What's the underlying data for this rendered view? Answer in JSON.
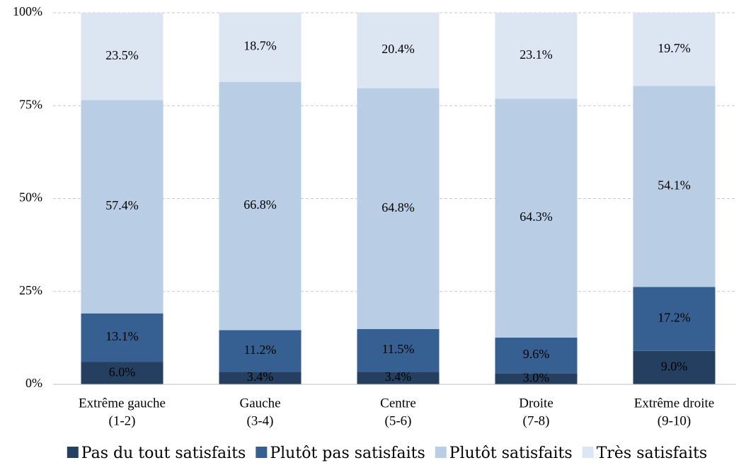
{
  "chart_data": {
    "type": "stacked-bar",
    "categories": [
      [
        "Extrême gauche",
        "(1-2)"
      ],
      [
        "Gauche",
        "(3-4)"
      ],
      [
        "Centre",
        "(5-6)"
      ],
      [
        "Droite",
        "(7-8)"
      ],
      [
        "Extrême droite",
        "(9-10)"
      ]
    ],
    "series": [
      {
        "name": "Pas du tout satisfaits",
        "color": "#243f60",
        "values": [
          6.0,
          3.4,
          3.4,
          3.0,
          9.0
        ],
        "value_labels": [
          "6.0%",
          "3.4%",
          "3.4%",
          "3.0%",
          "9.0%"
        ]
      },
      {
        "name": "Plutôt pas satisfaits",
        "color": "#376092",
        "values": [
          13.1,
          11.2,
          11.5,
          9.6,
          17.2
        ],
        "value_labels": [
          "13.1%",
          "11.2%",
          "11.5%",
          "9.6%",
          "17.2%"
        ]
      },
      {
        "name": "Plutôt satisfaits",
        "color": "#b9cde5",
        "values": [
          57.4,
          66.8,
          64.8,
          64.3,
          54.1
        ],
        "value_labels": [
          "57.4%",
          "66.8%",
          "64.8%",
          "64.3%",
          "54.1%"
        ]
      },
      {
        "name": "Très satisfaits",
        "color": "#dce6f2",
        "values": [
          23.5,
          18.7,
          20.4,
          23.1,
          19.7
        ],
        "value_labels": [
          "23.5%",
          "18.7%",
          "20.4%",
          "23.1%",
          "19.7%"
        ]
      }
    ],
    "ylim": [
      0,
      100
    ],
    "yticks": [
      {
        "value": 0,
        "label": "0%"
      },
      {
        "value": 25,
        "label": "25%"
      },
      {
        "value": 50,
        "label": "50%"
      },
      {
        "value": 75,
        "label": "75%"
      },
      {
        "value": 100,
        "label": "100%"
      }
    ],
    "grid": true,
    "legend": "bottom"
  }
}
